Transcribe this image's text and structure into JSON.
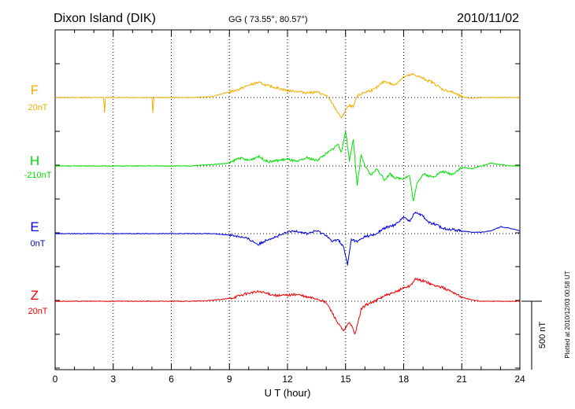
{
  "header": {
    "station": "Dixon Island (DIK)",
    "coords": "GG ( 73.55°,  80.57°)",
    "date": "2010/11/02"
  },
  "footer": {
    "plotted_note": "Plotted at 2010/12/03 00:58 UT"
  },
  "chart_data": {
    "type": "line",
    "title": "Dixon Island (DIK)",
    "xlabel": "U T (hour)",
    "ylabel": "",
    "xlim": [
      0,
      24
    ],
    "xticks": [
      0,
      3,
      6,
      9,
      12,
      15,
      18,
      21,
      24
    ],
    "grid": true,
    "scale_bar": {
      "label": "500 nT",
      "value": 500,
      "unit": "nT"
    },
    "series": [
      {
        "name": "F",
        "offset_label": "20nT",
        "color": "#f0b000",
        "x": [
          0,
          1,
          2,
          2.5,
          2.55,
          2.6,
          3,
          4,
          5,
          5.05,
          5.1,
          6,
          7,
          8,
          9,
          9.5,
          10,
          10.5,
          11,
          11.5,
          12,
          12.5,
          13,
          13.5,
          14,
          14.3,
          14.6,
          14.8,
          15,
          15.2,
          15.4,
          15.6,
          16,
          16.5,
          17,
          17.5,
          18,
          18.5,
          19,
          19.5,
          20,
          20.5,
          21,
          21.5,
          22,
          22.5,
          23,
          24
        ],
        "y": [
          0,
          0,
          0,
          0,
          -110,
          0,
          0,
          0,
          0,
          -110,
          0,
          0,
          0,
          5,
          40,
          60,
          90,
          110,
          85,
          70,
          50,
          45,
          35,
          40,
          15,
          -40,
          -110,
          -150,
          -90,
          -60,
          -70,
          10,
          40,
          60,
          120,
          90,
          150,
          170,
          140,
          110,
          60,
          40,
          5,
          -5,
          0,
          0,
          0,
          0
        ]
      },
      {
        "name": "H",
        "offset_label": "-210nT",
        "color": "#00e000",
        "x": [
          0,
          1,
          2,
          3,
          4,
          5,
          6,
          7,
          8,
          9,
          9.5,
          10,
          10.5,
          11,
          11.5,
          12,
          12.5,
          13,
          13.5,
          14,
          14.3,
          14.6,
          14.8,
          15,
          15.2,
          15.4,
          15.6,
          15.8,
          16,
          16.3,
          16.6,
          17,
          17.3,
          17.6,
          18,
          18.3,
          18.5,
          18.7,
          19,
          19.5,
          20,
          20.5,
          21,
          21.5,
          22,
          22.5,
          23,
          23.5,
          24
        ],
        "y": [
          0,
          0,
          0,
          0,
          0,
          0,
          0,
          0,
          10,
          20,
          60,
          40,
          70,
          30,
          40,
          50,
          30,
          60,
          40,
          90,
          120,
          160,
          100,
          260,
          40,
          200,
          -150,
          80,
          0,
          -70,
          -20,
          -100,
          -60,
          -90,
          -90,
          -70,
          -260,
          -120,
          -60,
          -80,
          -40,
          -60,
          -10,
          -20,
          0,
          20,
          10,
          0,
          0
        ]
      },
      {
        "name": "E",
        "offset_label": "0nT",
        "color": "#0000dd",
        "x": [
          0,
          1,
          2,
          3,
          4,
          5,
          6,
          7,
          8,
          9,
          9.5,
          10,
          10.5,
          11,
          11.5,
          12,
          12.5,
          13,
          13.5,
          14,
          14.3,
          14.6,
          14.9,
          15.1,
          15.3,
          15.6,
          16,
          16.5,
          17,
          17.5,
          18,
          18.3,
          18.6,
          19,
          19.3,
          19.6,
          20,
          20.5,
          21,
          21.5,
          22,
          22.5,
          23,
          23.5,
          24
        ],
        "y": [
          0,
          0,
          0,
          0,
          0,
          0,
          0,
          0,
          0,
          -10,
          -20,
          -40,
          -80,
          -40,
          -20,
          10,
          20,
          0,
          20,
          -10,
          -60,
          -40,
          -100,
          -230,
          -40,
          -60,
          -20,
          -10,
          40,
          60,
          120,
          90,
          160,
          130,
          80,
          70,
          40,
          30,
          20,
          10,
          10,
          20,
          50,
          40,
          20
        ]
      },
      {
        "name": "Z",
        "offset_label": "20nT",
        "color": "#ee0000",
        "x": [
          0,
          1,
          2,
          3,
          4,
          5,
          6,
          7,
          8,
          9,
          9.5,
          10,
          10.5,
          11,
          11.5,
          12,
          12.5,
          13,
          13.5,
          14,
          14.3,
          14.6,
          14.9,
          15.2,
          15.5,
          15.8,
          16,
          16.5,
          17,
          17.5,
          18,
          18.3,
          18.6,
          19,
          19.5,
          20,
          20.5,
          21,
          21.5,
          22,
          22.5,
          23,
          23.5,
          24
        ],
        "y": [
          0,
          0,
          0,
          0,
          0,
          0,
          0,
          0,
          5,
          20,
          40,
          60,
          70,
          55,
          40,
          45,
          50,
          30,
          20,
          -10,
          -80,
          -160,
          -220,
          -150,
          -240,
          -60,
          -30,
          0,
          40,
          60,
          100,
          110,
          160,
          150,
          120,
          100,
          70,
          30,
          10,
          0,
          0,
          0,
          0,
          0
        ]
      }
    ]
  }
}
